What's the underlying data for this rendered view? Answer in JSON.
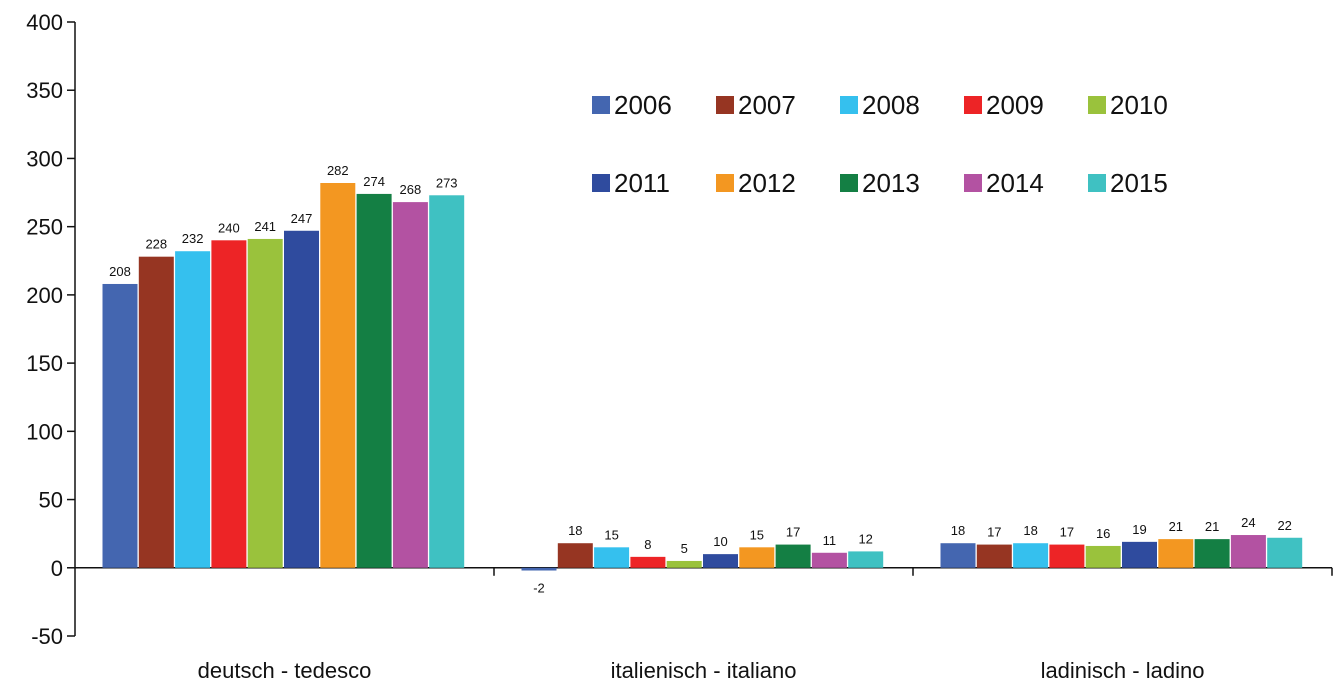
{
  "chart_data": {
    "type": "bar",
    "title": "",
    "xlabel": "",
    "ylabel": "",
    "ylim": [
      -50,
      400
    ],
    "yticks": [
      -50,
      0,
      50,
      100,
      150,
      200,
      250,
      300,
      350,
      400
    ],
    "categories": [
      "deutsch - tedesco",
      "italienisch - italiano",
      "ladinisch - ladino"
    ],
    "series": [
      {
        "name": "2006",
        "color": "#4466b0",
        "values": [
          208,
          -2,
          18
        ]
      },
      {
        "name": "2007",
        "color": "#963522",
        "values": [
          228,
          18,
          17
        ]
      },
      {
        "name": "2008",
        "color": "#35c0ee",
        "values": [
          232,
          15,
          18
        ]
      },
      {
        "name": "2009",
        "color": "#ed2426",
        "values": [
          240,
          8,
          17
        ]
      },
      {
        "name": "2010",
        "color": "#9ac23c",
        "values": [
          241,
          5,
          16
        ]
      },
      {
        "name": "2011",
        "color": "#2f4b9e",
        "values": [
          247,
          10,
          19
        ]
      },
      {
        "name": "2012",
        "color": "#f39721",
        "values": [
          282,
          15,
          21
        ]
      },
      {
        "name": "2013",
        "color": "#147f44",
        "values": [
          274,
          17,
          21
        ]
      },
      {
        "name": "2014",
        "color": "#b352a2",
        "values": [
          268,
          11,
          24
        ]
      },
      {
        "name": "2015",
        "color": "#3fc1c2",
        "values": [
          273,
          12,
          22
        ]
      }
    ],
    "data_labels": true,
    "grid": false,
    "legend": {
      "position": "top-right",
      "columns": 5
    }
  }
}
